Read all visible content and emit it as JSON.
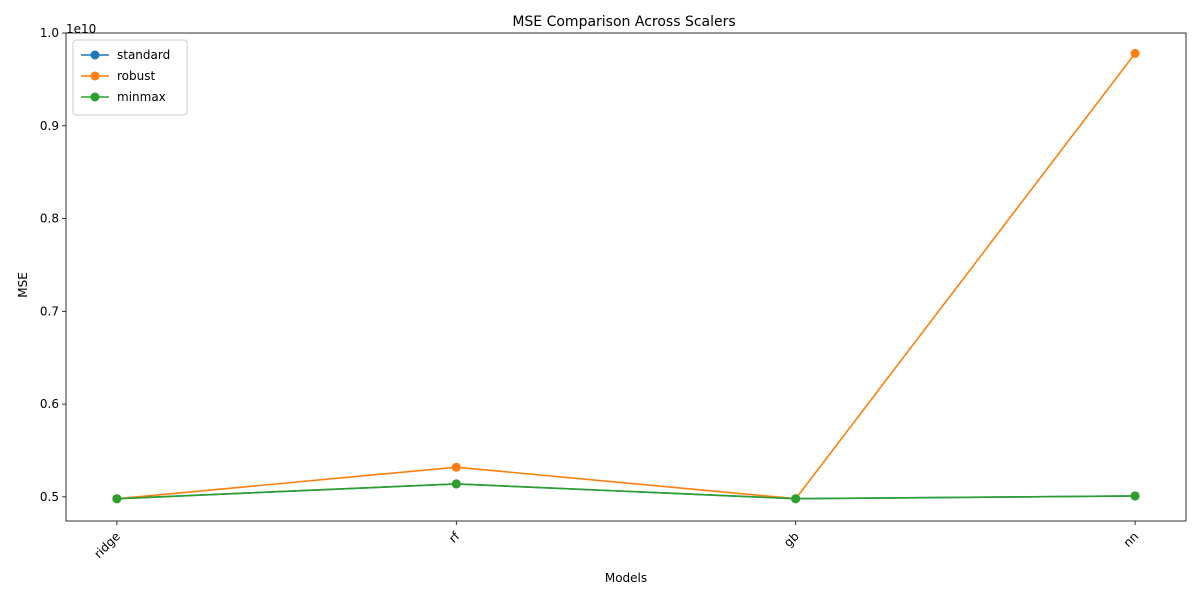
{
  "chart_data": {
    "type": "line",
    "title": "MSE Comparison Across Scalers",
    "xlabel": "Models",
    "ylabel": "MSE",
    "y_offset_label": "1e10",
    "categories": [
      "ridge",
      "rf",
      "gb",
      "nn"
    ],
    "series": [
      {
        "name": "standard",
        "color": "#1f77b4",
        "values": [
          0.498,
          0.514,
          0.498,
          0.501
        ]
      },
      {
        "name": "robust",
        "color": "#ff7f0e",
        "values": [
          0.498,
          0.532,
          0.498,
          0.978
        ]
      },
      {
        "name": "minmax",
        "color": "#2ca02c",
        "values": [
          0.498,
          0.514,
          0.498,
          0.501
        ]
      }
    ],
    "y_unit_scale": 10000000000.0,
    "ylim": [
      0.474,
      1.0
    ],
    "yticks": [
      0.5,
      0.6,
      0.7,
      0.8,
      0.9,
      1.0
    ],
    "ytick_labels": [
      "0.5",
      "0.6",
      "0.7",
      "0.8",
      "0.9",
      "1.0"
    ],
    "grid": false,
    "legend_position": "top-left",
    "marker": "circle"
  }
}
